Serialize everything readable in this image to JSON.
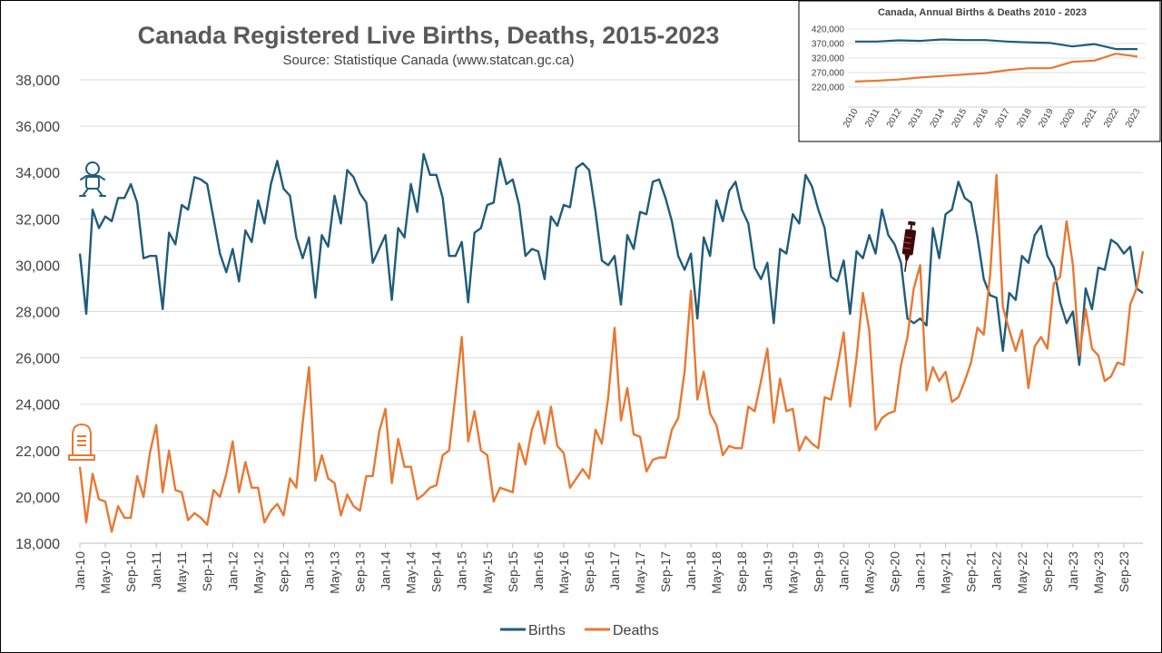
{
  "colors": {
    "births": "#1f5c7a",
    "deaths": "#e87832",
    "grid": "#d9d9d9",
    "text": "#404040"
  },
  "icons": {
    "births": "baby-icon",
    "deaths": "tombstone-icon",
    "event": "syringe-icon"
  },
  "chart_data": [
    {
      "type": "line",
      "title": "Canada Registered Live Births, Deaths, 2015-2023",
      "subtitle": "Source: Statistique Canada (www.statcan.gc.ca)",
      "ylim": [
        18000,
        38000
      ],
      "ytick_labels": [
        "18,000",
        "20,000",
        "22,000",
        "24,000",
        "26,000",
        "28,000",
        "30,000",
        "32,000",
        "34,000",
        "36,000",
        "38,000"
      ],
      "x_start": "2010-01",
      "x_end": "2023-12",
      "xtick_labels": [
        "Jan-10",
        "May-10",
        "Sep-10",
        "Jan-11",
        "May-11",
        "Sep-11",
        "Jan-12",
        "May-12",
        "Sep-12",
        "Jan-13",
        "May-13",
        "Sep-13",
        "Jan-14",
        "May-14",
        "Sep-14",
        "Jan-15",
        "May-15",
        "Sep-15",
        "Jan-16",
        "May-16",
        "Sep-16",
        "Jan-17",
        "May-17",
        "Sep-17",
        "Jan-18",
        "May-18",
        "Sep-18",
        "Jan-19",
        "May-19",
        "Sep-19",
        "Jan-20",
        "May-20",
        "Sep-20",
        "Jan-21",
        "May-21",
        "Sep-21",
        "Jan-22",
        "May-22",
        "Sep-22",
        "Jan-23",
        "May-23",
        "Sep-23"
      ],
      "legend": [
        "Births",
        "Deaths"
      ],
      "legend_position": "bottom",
      "grid": true,
      "series": [
        {
          "name": "Births",
          "values": [
            30500,
            27900,
            32400,
            31600,
            32100,
            31900,
            32900,
            32900,
            33500,
            32700,
            30300,
            30400,
            30400,
            28100,
            31400,
            30900,
            32600,
            32400,
            33800,
            33700,
            33500,
            32000,
            30500,
            29700,
            30700,
            29300,
            31500,
            31000,
            32800,
            31800,
            33500,
            34500,
            33300,
            33000,
            31200,
            30300,
            31200,
            28600,
            31300,
            30800,
            33000,
            31800,
            34100,
            33800,
            33100,
            32700,
            30100,
            30700,
            31300,
            28500,
            31600,
            31200,
            33500,
            32300,
            34800,
            33900,
            33900,
            32900,
            30400,
            30400,
            31000,
            28400,
            31400,
            31600,
            32600,
            32700,
            34600,
            33500,
            33700,
            32600,
            30400,
            30700,
            30600,
            29400,
            32100,
            31700,
            32600,
            32500,
            34200,
            34400,
            34100,
            32300,
            30200,
            30000,
            30400,
            28300,
            31300,
            30700,
            32300,
            32200,
            33600,
            33700,
            32900,
            31900,
            30400,
            29800,
            30500,
            27700,
            31200,
            30400,
            32800,
            31900,
            33200,
            33600,
            32400,
            31800,
            29900,
            29400,
            30100,
            27500,
            30700,
            30500,
            32200,
            31800,
            33900,
            33400,
            32400,
            31600,
            29500,
            29300,
            30200,
            27900,
            30600,
            30300,
            31300,
            30500,
            32400,
            31300,
            30900,
            30100,
            27700,
            27500,
            27700,
            27400,
            31600,
            30300,
            32200,
            32400,
            33600,
            32900,
            32700,
            31200,
            29400,
            28700,
            28600,
            26300,
            28800,
            28500,
            30400,
            30100,
            31300,
            31700,
            30400,
            29900,
            28400,
            27500,
            28000,
            25700,
            29000,
            28100,
            29900,
            29800,
            31100,
            30900,
            30500,
            30800,
            29000,
            28800
          ]
        },
        {
          "name": "Deaths",
          "values": [
            21300,
            18900,
            21000,
            19900,
            19800,
            18500,
            19600,
            19100,
            19100,
            20900,
            20000,
            21900,
            23100,
            20200,
            22000,
            20300,
            20200,
            19000,
            19300,
            19100,
            18800,
            20300,
            20000,
            21000,
            22400,
            20200,
            21500,
            20400,
            20400,
            18900,
            19400,
            19700,
            19200,
            20800,
            20400,
            23200,
            25600,
            20700,
            21800,
            20800,
            20600,
            19200,
            20100,
            19600,
            19400,
            20900,
            20900,
            22800,
            23800,
            20600,
            22500,
            21300,
            21300,
            19900,
            20100,
            20400,
            20500,
            21800,
            22000,
            24400,
            26900,
            22400,
            23700,
            22000,
            21800,
            19800,
            20400,
            20300,
            20200,
            22300,
            21400,
            22900,
            23700,
            22300,
            23900,
            22200,
            21900,
            20400,
            20800,
            21200,
            20800,
            22900,
            22300,
            24300,
            27300,
            23300,
            24700,
            22700,
            22600,
            21100,
            21600,
            21700,
            21700,
            22900,
            23400,
            25400,
            28900,
            24200,
            25400,
            23600,
            23100,
            21800,
            22200,
            22100,
            22100,
            23900,
            23700,
            25000,
            26400,
            23200,
            25100,
            23700,
            23800,
            22000,
            22600,
            22300,
            22100,
            24300,
            24200,
            25600,
            27100,
            23900,
            26000,
            28800,
            27200,
            22900,
            23400,
            23600,
            23700,
            25700,
            26900,
            29000,
            30000,
            24600,
            25600,
            25000,
            25400,
            24100,
            24300,
            25000,
            25800,
            27300,
            27000,
            29600,
            33900,
            28200,
            27200,
            26300,
            27200,
            24700,
            26500,
            26900,
            26400,
            29200,
            29500,
            31900,
            30000,
            26100,
            28100,
            26400,
            26100,
            25000,
            25200,
            25800,
            25700,
            28300,
            29000,
            30600
          ]
        }
      ]
    },
    {
      "type": "line",
      "title": "Canada, Annual Births & Deaths 2010 - 2023",
      "ylim": [
        170000,
        420000
      ],
      "ytick_labels": [
        "220,000",
        "270,000",
        "320,000",
        "370,000",
        "420,000"
      ],
      "categories": [
        "2010",
        "2011",
        "2012",
        "2013",
        "2014",
        "2015",
        "2016",
        "2017",
        "2018",
        "2019",
        "2020",
        "2021",
        "2022",
        "2023"
      ],
      "grid": true,
      "series": [
        {
          "name": "Births",
          "values": [
            377000,
            377000,
            381000,
            379000,
            384000,
            382000,
            382000,
            377000,
            374000,
            372000,
            360000,
            368000,
            351000,
            351000
          ]
        },
        {
          "name": "Deaths",
          "values": [
            239000,
            242000,
            246000,
            253000,
            258000,
            263000,
            268000,
            278000,
            285000,
            285000,
            307000,
            311000,
            335000,
            325000
          ]
        }
      ]
    }
  ]
}
